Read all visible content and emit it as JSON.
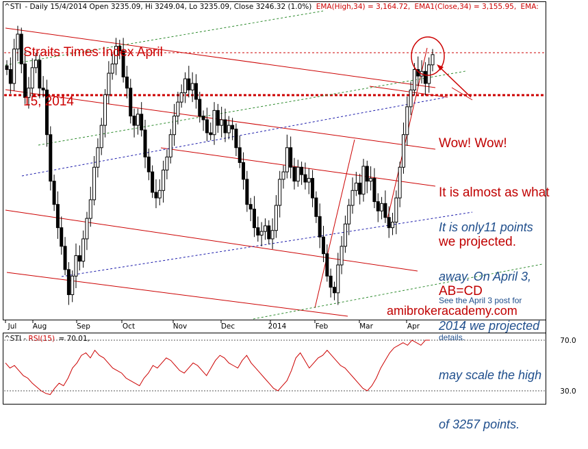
{
  "header": {
    "ticker": "^STI",
    "info": "- Daily 15/4/2014 Open 3235.09, Hi 3249.04, Lo 3235.09, Close 3246.32 (1.0%)",
    "ema1": "EMA(High,34) = 3,164.72,",
    "ema2": "EMA1(Close,34) = 3,155.95,",
    "ema3": "EMA:"
  },
  "title": [
    "Straits Times Index April",
    "15, 2014"
  ],
  "annotations": {
    "wow": [
      "Wow! Wow!",
      "It is almost as what",
      "we projected.",
      "AB=CD"
    ],
    "away": [
      "It is only11 points",
      "away. On April 3,",
      "2014 we projected",
      "may scale the high",
      "of 3257 points."
    ],
    "see": [
      "See the April 3 post for",
      "details."
    ],
    "watermark": "amibrokeracademy.com"
  },
  "rsi_header": {
    "ticker": "^STI",
    "label": "RSI(15)",
    "value": "= 70.01,"
  },
  "colors": {
    "candle": "#000000",
    "channel_red": "#cc0000",
    "trend_green": "#2e8b2e",
    "trend_blue": "#1a1aaa",
    "rsi_line": "#cc0000",
    "text_blue": "#1f4e8c"
  },
  "chart_data": [
    {
      "type": "candlestick",
      "title": "",
      "xlabel": "",
      "ylabel": "",
      "x_ticks": [
        "Jul",
        "Aug",
        "Sep",
        "Oct",
        "Nov",
        "Dec",
        "2014",
        "Feb",
        "Mar",
        "Apr"
      ],
      "ylim": [
        2970,
        3290
      ],
      "grid": false,
      "series": [
        {
          "close": [
            3230,
            3215,
            3252,
            3268,
            3236,
            3200,
            3210,
            3232,
            3240,
            3210,
            3208,
            3160,
            3110,
            3085,
            3060,
            3040,
            3015,
            2988,
            3008,
            3030,
            3024,
            3048,
            3070,
            3090,
            3125,
            3146,
            3170,
            3203,
            3226,
            3236,
            3255,
            3250,
            3222,
            3210,
            3180,
            3170,
            3182,
            3165,
            3136,
            3120,
            3098,
            3092,
            3100,
            3122,
            3136,
            3160,
            3180,
            3195,
            3205,
            3220,
            3208,
            3215,
            3198,
            3180,
            3176,
            3162,
            3160,
            3186,
            3170,
            3176,
            3162,
            3170,
            3166,
            3146,
            3130,
            3112,
            3085,
            3080,
            3060,
            3052,
            3056,
            3062,
            3048,
            3057,
            3084,
            3112,
            3120,
            3146,
            3125,
            3110,
            3125,
            3117,
            3109,
            3113,
            3092,
            3072,
            3050,
            3032,
            3008,
            2996,
            2990,
            3020,
            3040,
            3064,
            3084,
            3100,
            3108,
            3096,
            3126,
            3110,
            3113,
            3088,
            3078,
            3086,
            3071,
            3060,
            3066,
            3092,
            3125,
            3160,
            3190,
            3208,
            3230,
            3223,
            3228,
            3215,
            3235,
            3246
          ]
        }
      ]
    },
    {
      "type": "line",
      "title": "",
      "xlabel": "",
      "ylabel": "",
      "ylim": [
        20,
        75
      ],
      "y_ticks": [
        30.0,
        70.0
      ],
      "series": [
        {
          "name": "RSI(15)",
          "values": [
            52,
            48,
            50,
            46,
            42,
            40,
            36,
            33,
            30,
            28,
            27,
            32,
            36,
            34,
            40,
            48,
            52,
            58,
            60,
            56,
            62,
            58,
            56,
            52,
            48,
            46,
            44,
            40,
            38,
            36,
            34,
            40,
            44,
            50,
            48,
            52,
            56,
            54,
            50,
            46,
            44,
            48,
            52,
            50,
            46,
            42,
            48,
            54,
            58,
            56,
            52,
            50,
            48,
            54,
            58,
            52,
            48,
            44,
            40,
            36,
            32,
            30,
            34,
            38,
            46,
            56,
            60,
            54,
            48,
            52,
            56,
            58,
            62,
            58,
            54,
            50,
            48,
            44,
            40,
            36,
            32,
            30,
            34,
            40,
            48,
            54,
            60,
            64,
            66,
            68,
            66,
            70,
            68,
            66,
            70,
            70.01
          ]
        }
      ]
    }
  ]
}
